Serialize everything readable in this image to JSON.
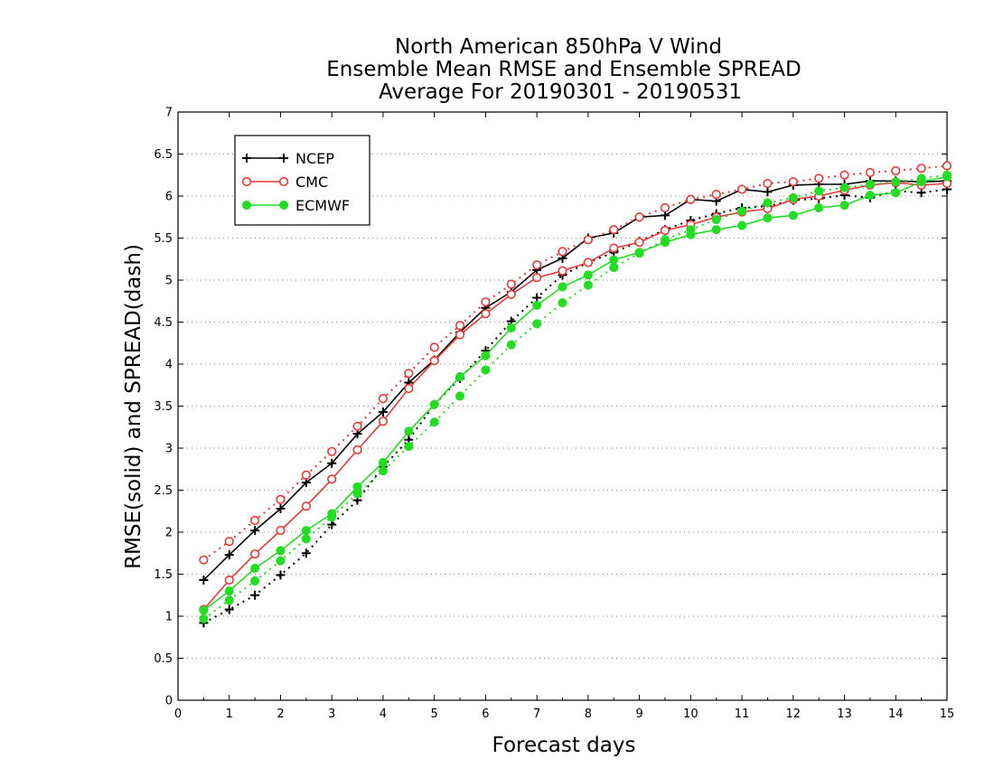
{
  "chart_data": {
    "type": "line",
    "title_lines": [
      "North American 850hPa V Wind",
      "Ensemble Mean RMSE and Ensemble SPREAD",
      "Average For 20190301 - 20190531"
    ],
    "xlabel": "Forecast days",
    "ylabel": "RMSE(solid) and SPREAD(dash)",
    "xlim": [
      0,
      15
    ],
    "ylim": [
      0,
      7
    ],
    "xticks": [
      "0",
      "1",
      "2",
      "3",
      "4",
      "5",
      "6",
      "7",
      "8",
      "9",
      "10",
      "11",
      "12",
      "13",
      "14",
      "15"
    ],
    "yticks": [
      "0",
      "0.5",
      "1",
      "1.5",
      "2",
      "2.5",
      "3",
      "3.5",
      "4",
      "4.5",
      "5",
      "5.5",
      "6",
      "6.5",
      "7"
    ],
    "grid": "dotted horizontal",
    "legend_position": "top-left",
    "x": [
      0.5,
      1,
      1.5,
      2,
      2.5,
      3,
      3.5,
      4,
      4.5,
      5,
      5.5,
      6,
      6.5,
      7,
      7.5,
      8,
      8.5,
      9,
      9.5,
      10,
      10.5,
      11,
      11.5,
      12,
      12.5,
      13,
      13.5,
      14,
      14.5,
      15
    ],
    "series": [
      {
        "name": "NCEP",
        "color": "#000000",
        "marker": "plus",
        "rmse": [
          1.43,
          1.73,
          2.02,
          2.28,
          2.59,
          2.82,
          3.17,
          3.43,
          3.78,
          4.05,
          4.38,
          4.67,
          4.86,
          5.12,
          5.26,
          5.5,
          5.56,
          5.75,
          5.77,
          5.96,
          5.94,
          6.08,
          6.05,
          6.13,
          6.14,
          6.14,
          6.18,
          6.18,
          6.17,
          6.18
        ],
        "spread": [
          0.92,
          1.08,
          1.25,
          1.49,
          1.75,
          2.09,
          2.38,
          2.78,
          3.1,
          3.52,
          3.83,
          4.16,
          4.51,
          4.79,
          5.06,
          5.21,
          5.33,
          5.46,
          5.6,
          5.71,
          5.79,
          5.86,
          5.88,
          5.95,
          5.97,
          6.01,
          5.98,
          6.06,
          6.04,
          6.08
        ]
      },
      {
        "name": "CMC",
        "color": "#e83838",
        "marker": "open-circle",
        "rmse": [
          1.08,
          1.43,
          1.74,
          2.02,
          2.31,
          2.63,
          2.98,
          3.32,
          3.71,
          4.04,
          4.35,
          4.6,
          4.83,
          5.03,
          5.11,
          5.21,
          5.38,
          5.45,
          5.59,
          5.66,
          5.75,
          5.81,
          5.85,
          5.96,
          6.0,
          6.07,
          6.13,
          6.16,
          6.13,
          6.15
        ],
        "spread": [
          1.67,
          1.89,
          2.14,
          2.39,
          2.68,
          2.96,
          3.26,
          3.59,
          3.89,
          4.2,
          4.46,
          4.74,
          4.95,
          5.18,
          5.34,
          5.48,
          5.6,
          5.75,
          5.86,
          5.96,
          6.02,
          6.08,
          6.15,
          6.17,
          6.21,
          6.25,
          6.28,
          6.3,
          6.33,
          6.36
        ]
      },
      {
        "name": "ECMWF",
        "color": "#22dd22",
        "marker": "filled-circle",
        "rmse": [
          1.07,
          1.3,
          1.57,
          1.78,
          2.02,
          2.22,
          2.54,
          2.83,
          3.2,
          3.52,
          3.85,
          4.1,
          4.43,
          4.7,
          4.92,
          5.06,
          5.24,
          5.33,
          5.45,
          5.54,
          5.6,
          5.65,
          5.74,
          5.77,
          5.86,
          5.89,
          6.01,
          6.04,
          6.17,
          6.23
        ],
        "spread": [
          0.97,
          1.19,
          1.42,
          1.66,
          1.92,
          2.18,
          2.46,
          2.73,
          3.02,
          3.31,
          3.62,
          3.93,
          4.23,
          4.48,
          4.73,
          4.94,
          5.15,
          5.32,
          5.48,
          5.6,
          5.72,
          5.82,
          5.92,
          5.98,
          6.06,
          6.1,
          6.14,
          6.17,
          6.21,
          6.25
        ]
      }
    ]
  }
}
